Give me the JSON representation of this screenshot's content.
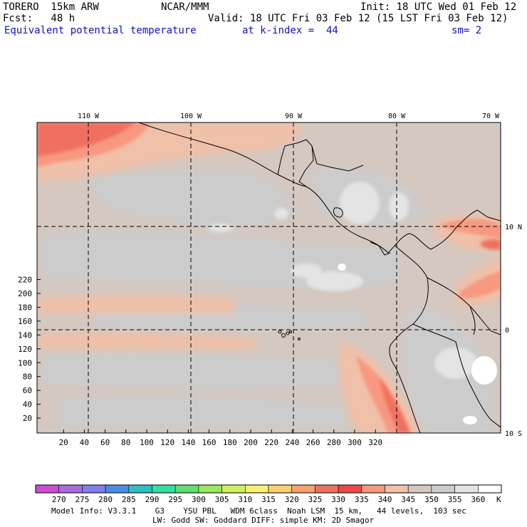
{
  "header": {
    "model": "TORERO  15km ARW",
    "org": "NCAR/MMM",
    "init": "Init: 18 UTC Wed 01 Feb 12",
    "fcst": "Fcst:   48 h",
    "valid": "Valid: 18 UTC Fri 03 Feb 12 (15 LST Fri 03 Feb 12)",
    "field": "Equivalent potential temperature",
    "level": "at k-index =  44",
    "smooth": "sm= 2"
  },
  "map": {
    "lon_labels": [
      "110 W",
      "100 W",
      "90 W",
      "80 W",
      "70 W"
    ],
    "lat_labels": [
      "10 N",
      "0",
      "10 S"
    ],
    "y_ticks": [
      "20",
      "40",
      "60",
      "80",
      "100",
      "120",
      "140",
      "160",
      "180",
      "200",
      "220"
    ],
    "x_ticks": [
      "20",
      "40",
      "60",
      "80",
      "100",
      "120",
      "140",
      "160",
      "180",
      "200",
      "220",
      "240",
      "260",
      "280",
      "300",
      "320"
    ]
  },
  "colorbar": {
    "labels": [
      "270",
      "275",
      "280",
      "285",
      "290",
      "295",
      "300",
      "305",
      "310",
      "315",
      "320",
      "325",
      "330",
      "335",
      "340",
      "345",
      "350",
      "355",
      "360"
    ],
    "unit": "K",
    "colors": [
      "#cc4cd8",
      "#a46ee0",
      "#7f7ff0",
      "#4c8ce8",
      "#2cc0c0",
      "#30e0a0",
      "#60e070",
      "#98e860",
      "#d0f060",
      "#f8f070",
      "#f8d070",
      "#f8a070",
      "#f07060",
      "#f04848",
      "#f89880",
      "#f0c0a8",
      "#d4c8c0",
      "#cccccc",
      "#e4e4e4",
      "#ffffff"
    ]
  },
  "footer": {
    "line1": "Model Info: V3.3.1    G3    YSU PBL   WDM 6class  Noah LSM  15 km,   44 levels,  103 sec",
    "line2": "LW: Godd SW: Goddard DIFF: simple KM: 2D Smagor"
  }
}
